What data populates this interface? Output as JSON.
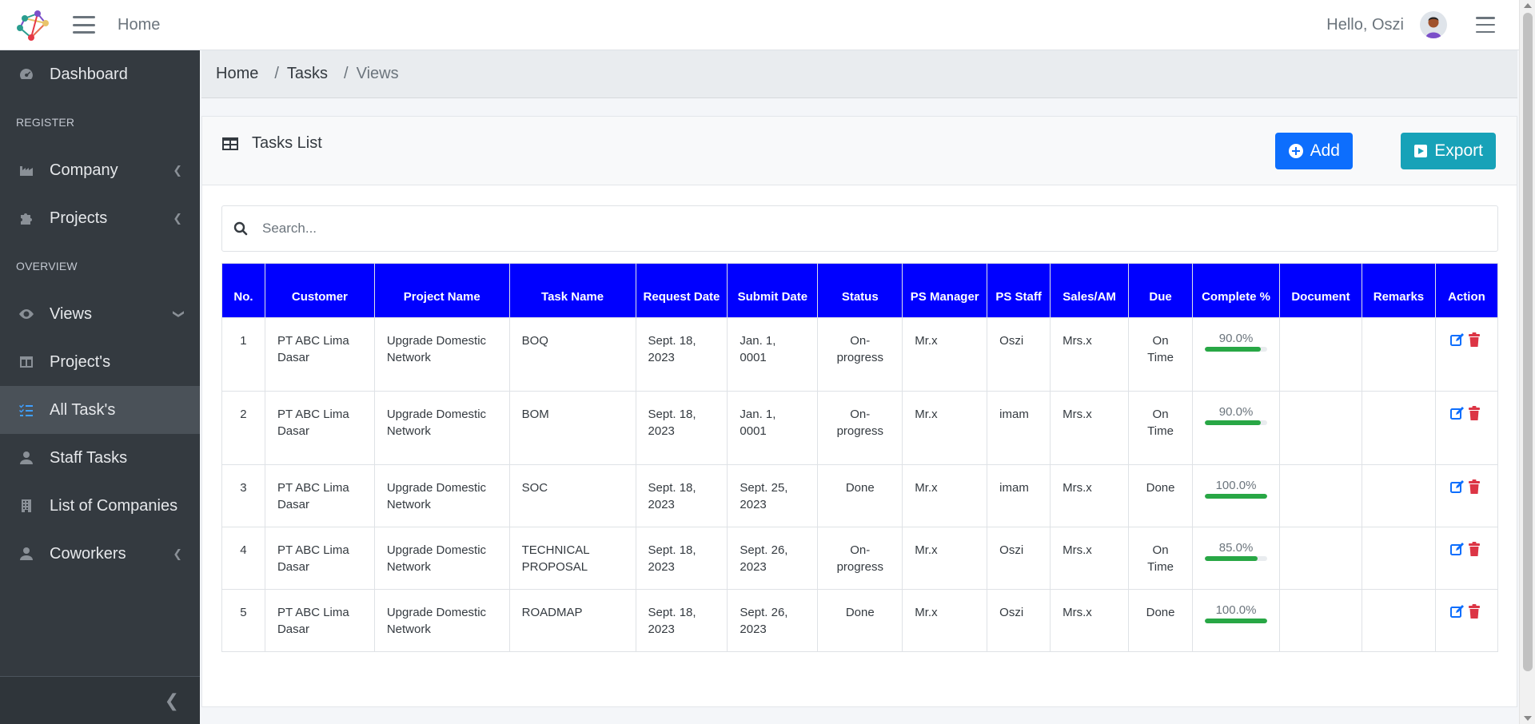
{
  "navbar": {
    "home_label": "Home",
    "greeting": "Hello, Oszi"
  },
  "sidebar": {
    "items": [
      {
        "label": "Dashboard",
        "icon": "tachometer-icon"
      },
      {
        "header": "REGISTER"
      },
      {
        "label": "Company",
        "icon": "industry-icon",
        "has_chevron": true
      },
      {
        "label": "Projects",
        "icon": "puzzle-icon",
        "has_chevron": true
      },
      {
        "header": "OVERVIEW"
      },
      {
        "label": "Views",
        "icon": "eye-icon",
        "has_chevron": true
      },
      {
        "label": "Project's",
        "icon": "columns-icon"
      },
      {
        "label": "All Task's",
        "icon": "tasks-icon",
        "active": true
      },
      {
        "label": "Staff Tasks",
        "icon": "user-icon"
      },
      {
        "label": "List of Companies",
        "icon": "building-icon"
      },
      {
        "label": "Coworkers",
        "icon": "user-icon",
        "has_chevron": true
      }
    ]
  },
  "breadcrumb": [
    "Home",
    "Tasks",
    "Views"
  ],
  "card": {
    "title": "Tasks List",
    "add_label": "Add",
    "export_label": "Export"
  },
  "search": {
    "placeholder": "Search..."
  },
  "table": {
    "headers": [
      "No.",
      "Customer",
      "Project Name",
      "Task Name",
      "Request Date",
      "Submit Date",
      "Status",
      "PS Manager",
      "PS Staff",
      "Sales/AM",
      "Due",
      "Complete %",
      "Document",
      "Remarks",
      "Action"
    ],
    "rows": [
      {
        "no": "1",
        "customer": "PT ABC Lima Dasar",
        "project": "Upgrade Domestic Network",
        "task": "BOQ",
        "request": "Sept. 18, 2023",
        "submit": "Jan. 1, 0001",
        "status": "On-progress",
        "manager": "Mr.x",
        "staff": "Oszi",
        "sales": "Mrs.x",
        "due": "On Time",
        "complete_label": "90.0%",
        "complete": 90,
        "document": "",
        "remarks": ""
      },
      {
        "no": "2",
        "customer": "PT ABC Lima Dasar",
        "project": "Upgrade Domestic Network",
        "task": "BOM",
        "request": "Sept. 18, 2023",
        "submit": "Jan. 1, 0001",
        "status": "On-progress",
        "manager": "Mr.x",
        "staff": "imam",
        "sales": "Mrs.x",
        "due": "On Time",
        "complete_label": "90.0%",
        "complete": 90,
        "document": "",
        "remarks": ""
      },
      {
        "no": "3",
        "customer": "PT ABC Lima Dasar",
        "project": "Upgrade Domestic Network",
        "task": "SOC",
        "request": "Sept. 18, 2023",
        "submit": "Sept. 25, 2023",
        "status": "Done",
        "manager": "Mr.x",
        "staff": "imam",
        "sales": "Mrs.x",
        "due": "Done",
        "complete_label": "100.0%",
        "complete": 100,
        "document": "",
        "remarks": ""
      },
      {
        "no": "4",
        "customer": "PT ABC Lima Dasar",
        "project": "Upgrade Domestic Network",
        "task": "TECHNICAL PROPOSAL",
        "request": "Sept. 18, 2023",
        "submit": "Sept. 26, 2023",
        "status": "On-progress",
        "manager": "Mr.x",
        "staff": "Oszi",
        "sales": "Mrs.x",
        "due": "On Time",
        "complete_label": "85.0%",
        "complete": 85,
        "document": "",
        "remarks": ""
      },
      {
        "no": "5",
        "customer": "PT ABC Lima Dasar",
        "project": "Upgrade Domestic Network",
        "task": "ROADMAP",
        "request": "Sept. 18, 2023",
        "submit": "Sept. 26, 2023",
        "status": "Done",
        "manager": "Mr.x",
        "staff": "Oszi",
        "sales": "Mrs.x",
        "due": "Done",
        "complete_label": "100.0%",
        "complete": 100,
        "document": "",
        "remarks": ""
      }
    ]
  },
  "colors": {
    "header_blue": "#0000ff",
    "status_progress": "#1b33c8",
    "status_done": "#2e7d1a",
    "progress_bar": "#28a745",
    "edit_icon": "#0d6efd",
    "delete_icon": "#dc3545"
  }
}
